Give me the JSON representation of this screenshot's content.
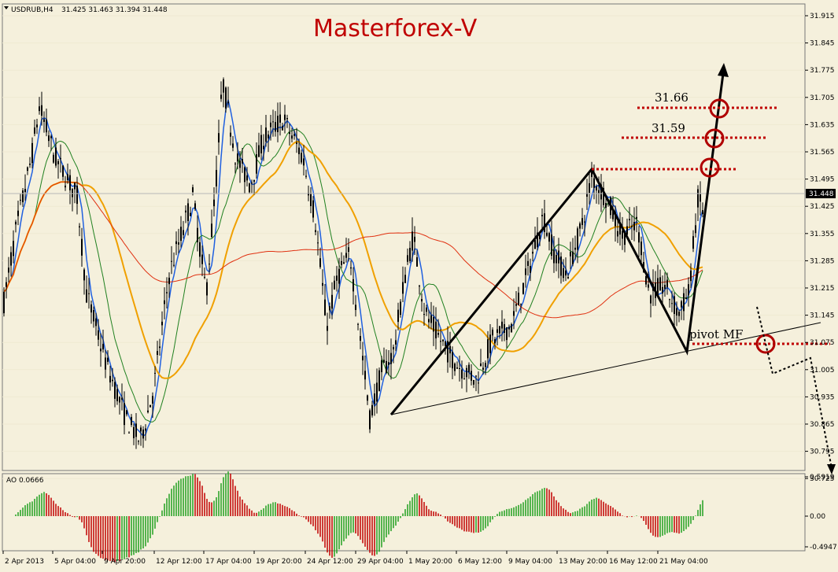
{
  "header": {
    "symbol": "USDRUB,H4",
    "ohlc": "31.425 31.463 31.394 31.448"
  },
  "watermark": "Masterforex-V",
  "colors": {
    "background": "#f5f0dc",
    "candle": "#000000",
    "ma_fast": "#2060e0",
    "ma_mid": "#208020",
    "ma_slow": "#f0a000",
    "ma_long": "#e03010",
    "level_line": "#c00000",
    "ao_up": "#20a020",
    "ao_down": "#c00000"
  },
  "annotations": {
    "level_1": "31.66",
    "level_2": "31.59",
    "pivot": "pivot MF"
  },
  "price_panel": {
    "current_price": "31.448",
    "y_ticks": [
      "31.915",
      "31.845",
      "31.775",
      "31.705",
      "31.635",
      "31.565",
      "31.495",
      "31.425",
      "31.355",
      "31.285",
      "31.215",
      "31.145",
      "31.075",
      "31.005",
      "30.935",
      "30.865",
      "30.795",
      "30.725"
    ]
  },
  "ao_panel": {
    "label": "AO 0.0666",
    "y_ticks": [
      "0.5919",
      "0.00",
      "-0.4947"
    ]
  },
  "x_ticks": [
    "2 Apr 2013",
    "5 Apr 04:00",
    "9 Apr 20:00",
    "12 Apr 12:00",
    "17 Apr 04:00",
    "19 Apr 20:00",
    "24 Apr 12:00",
    "29 Apr 04:00",
    "1 May 20:00",
    "6 May 12:00",
    "9 May 04:00",
    "13 May 20:00",
    "16 May 12:00",
    "21 May 04:00"
  ],
  "chart_data": {
    "type": "candlestick",
    "title": "USDRUB,H4",
    "ylim": [
      30.72,
      31.95
    ],
    "x": [
      "2 Apr 2013",
      "5 Apr 04:00",
      "9 Apr 20:00",
      "12 Apr 12:00",
      "17 Apr 04:00",
      "19 Apr 20:00",
      "24 Apr 12:00",
      "29 Apr 04:00",
      "1 May 20:00",
      "6 May 12:00",
      "9 May 04:00",
      "13 May 20:00",
      "16 May 12:00",
      "21 May 04:00"
    ],
    "close_approx": [
      31.2,
      31.62,
      30.85,
      31.25,
      31.75,
      31.6,
      31.45,
      31.02,
      31.2,
      31.02,
      31.22,
      31.45,
      31.28,
      31.2
    ],
    "last": 31.448,
    "levels": [
      31.66,
      31.59,
      31.5,
      31.06
    ],
    "pivot": 31.06,
    "ao": {
      "last": 0.0666,
      "ylim": [
        -0.4947,
        0.5919
      ]
    }
  }
}
